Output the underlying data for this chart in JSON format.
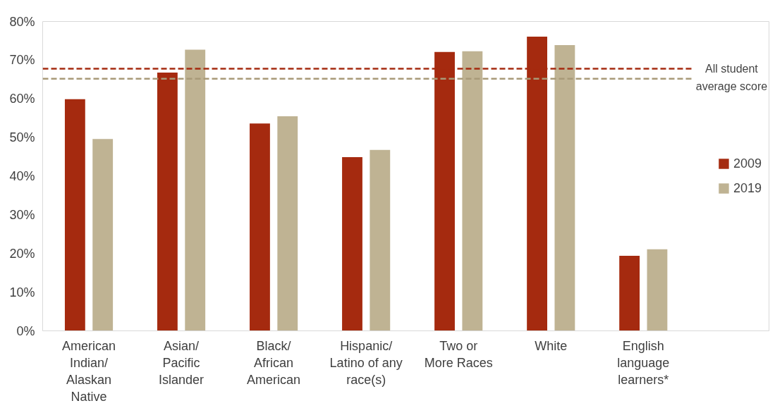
{
  "chart_data": {
    "type": "bar",
    "categories": [
      "American\nIndian/\nAlaskan\nNative",
      "Asian/\nPacific\nIslander",
      "Black/\nAfrican\nAmerican",
      "Hispanic/\nLatino of any\nrace(s)",
      "Two or\nMore Races",
      "White",
      "English\nlanguage\nlearners*"
    ],
    "series": [
      {
        "name": "2009",
        "color": "#a52a0f",
        "values": [
          59.9,
          66.8,
          53.6,
          44.9,
          72.1,
          76.1,
          19.4
        ]
      },
      {
        "name": "2019",
        "color": "#bfb393",
        "values": [
          49.6,
          72.7,
          55.5,
          46.8,
          72.3,
          73.9,
          21.1
        ]
      }
    ],
    "ylim": [
      0,
      80
    ],
    "yticks": [
      {
        "value": 0,
        "label": "0%"
      },
      {
        "value": 10,
        "label": "10%"
      },
      {
        "value": 20,
        "label": "20%"
      },
      {
        "value": 30,
        "label": "30%"
      },
      {
        "value": 40,
        "label": "40%"
      },
      {
        "value": 50,
        "label": "50%"
      },
      {
        "value": 60,
        "label": "60%"
      },
      {
        "value": 70,
        "label": "70%"
      },
      {
        "value": 80,
        "label": "80%"
      }
    ],
    "ref_lines": [
      {
        "axis": "y",
        "value": 67.8,
        "label": "All student\naverage score",
        "color": "#a52a0f",
        "line_style": "dashed"
      },
      {
        "axis": "y",
        "value": 65.2,
        "label": null,
        "color": "#a89a78",
        "line_style": "dashed"
      }
    ],
    "legend": "right",
    "grid": false
  }
}
